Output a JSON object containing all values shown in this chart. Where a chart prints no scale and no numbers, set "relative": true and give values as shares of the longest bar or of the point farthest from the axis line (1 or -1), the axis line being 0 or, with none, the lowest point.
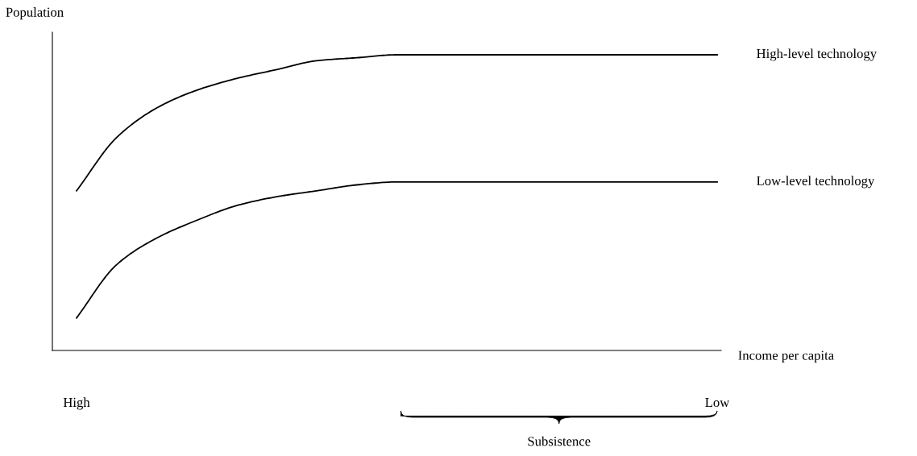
{
  "chart_data": {
    "type": "line",
    "relative": true,
    "xlabel": "Income per capita",
    "ylabel": "Population",
    "categories": [
      "High",
      null,
      null,
      null,
      null,
      null,
      null,
      null,
      null,
      null,
      null,
      null,
      null,
      null,
      null,
      null,
      "Low"
    ],
    "series": [
      {
        "name": "High-level technology",
        "color": "#000000",
        "values": [
          0.54,
          0.72,
          0.82,
          0.88,
          0.92,
          0.95,
          0.98,
          0.99,
          1.0,
          1.0,
          1.0,
          1.0,
          1.0,
          1.0,
          1.0,
          1.0,
          1.0
        ]
      },
      {
        "name": "Low-level technology",
        "color": "#000000",
        "values": [
          0.11,
          0.29,
          0.38,
          0.44,
          0.49,
          0.52,
          0.54,
          0.56,
          0.57,
          0.57,
          0.57,
          0.57,
          0.57,
          0.57,
          0.57,
          0.57,
          0.57
        ]
      }
    ],
    "annotations": [
      "Subsistence"
    ],
    "grid": false,
    "legend": false,
    "marker": "none",
    "line_style": "solid"
  }
}
